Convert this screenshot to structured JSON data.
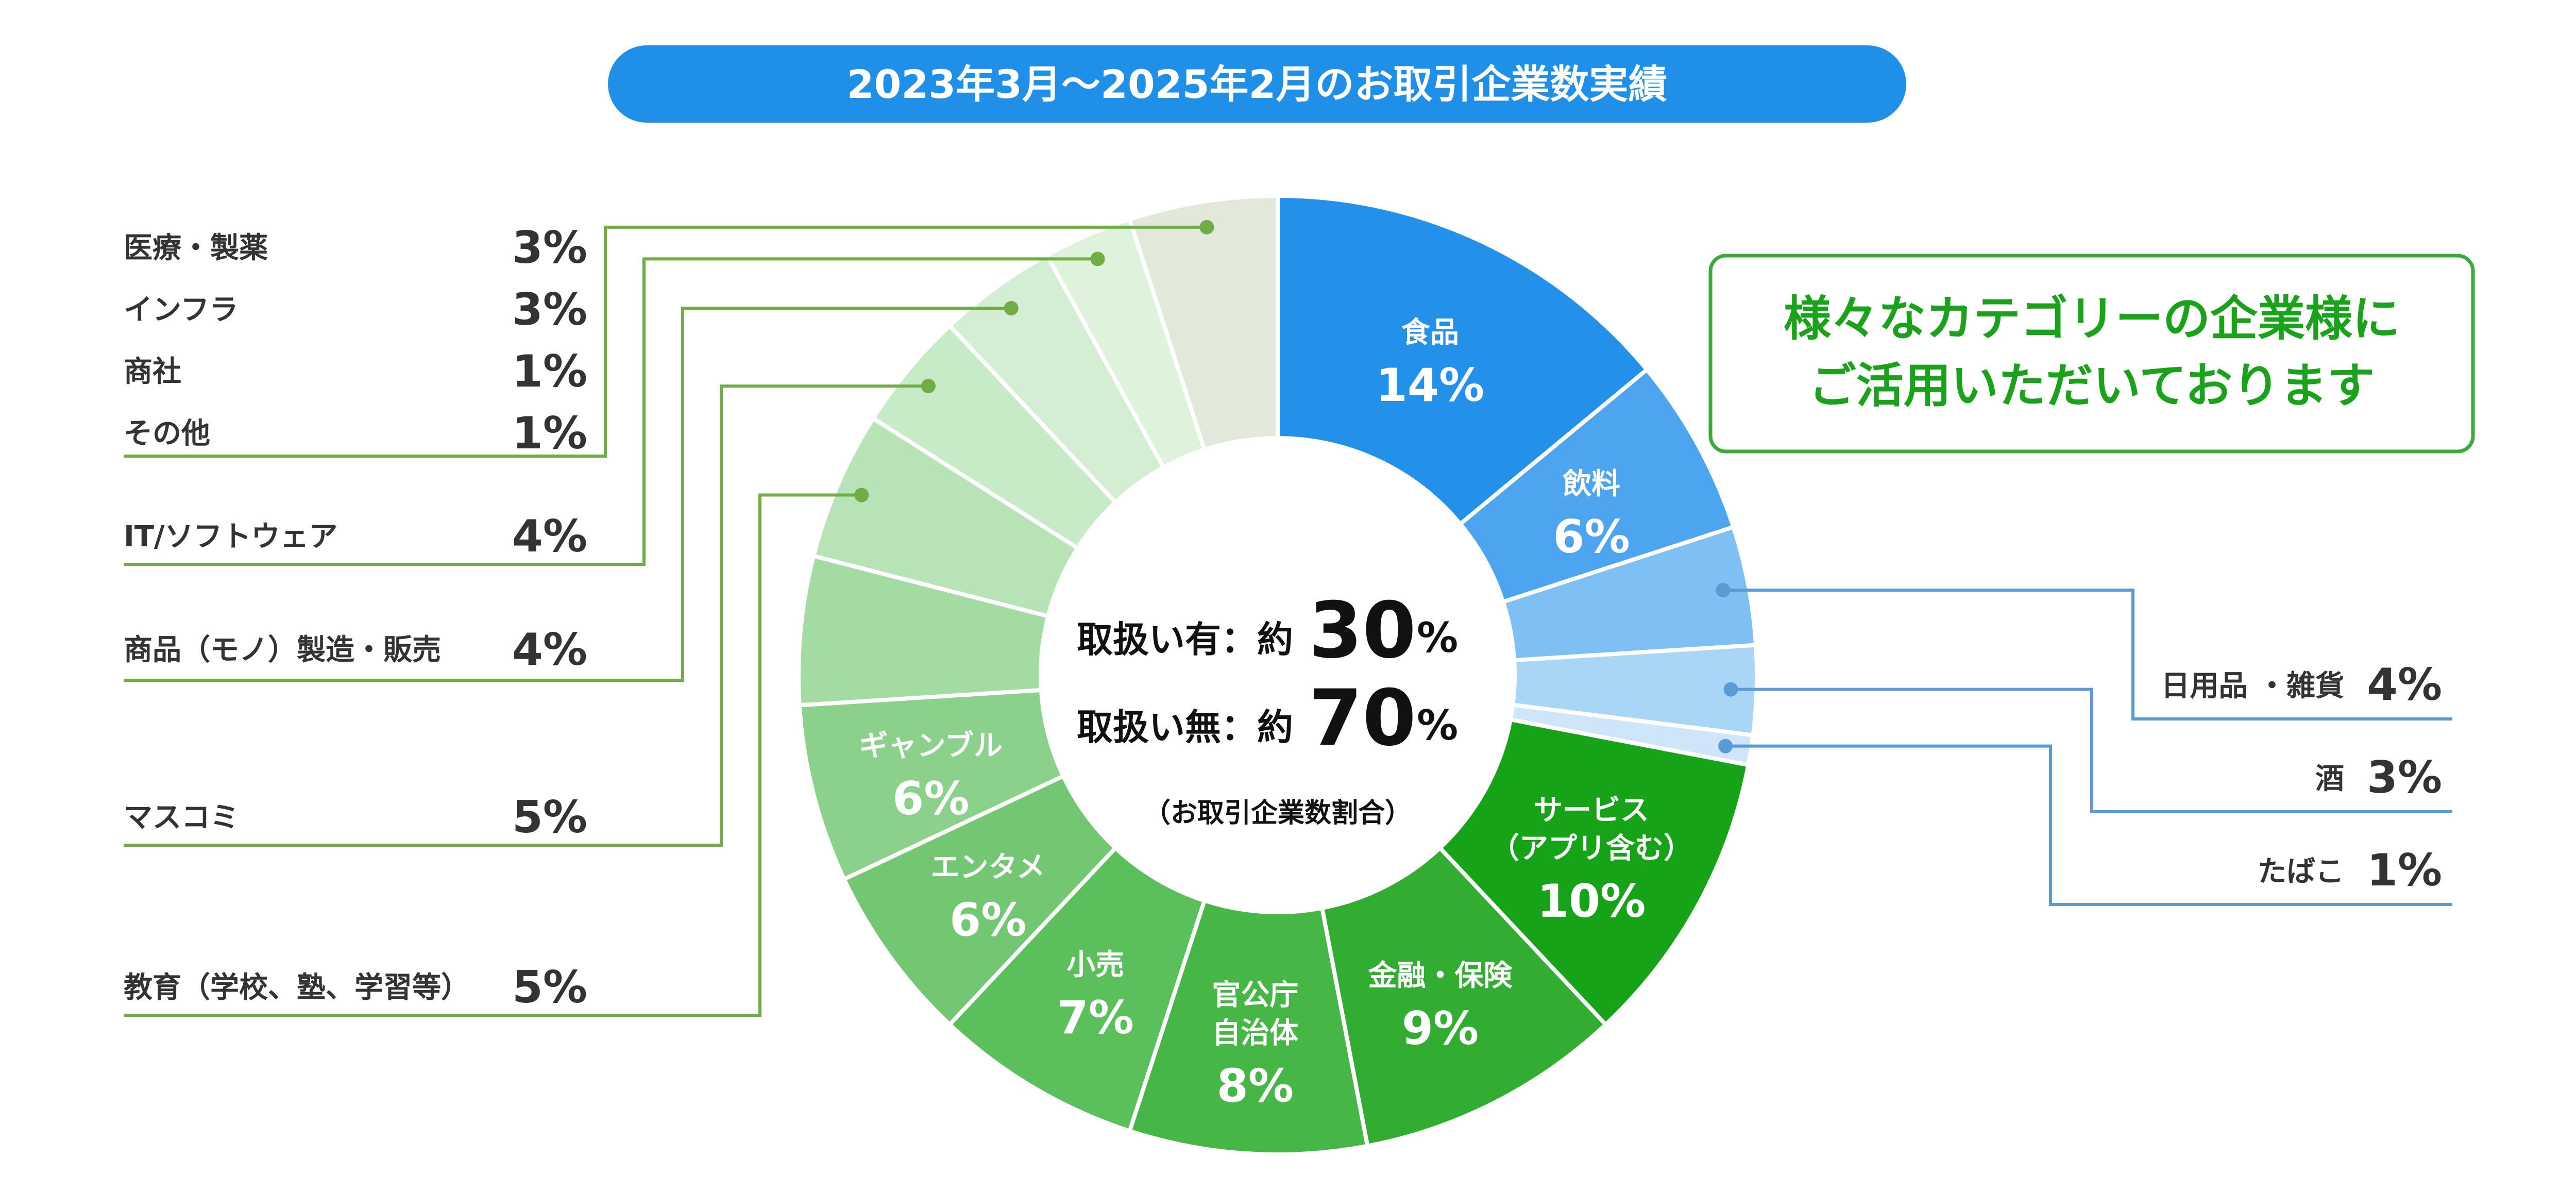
{
  "title": "2023年3月～2025年2月のお取引企業数実績",
  "callout": {
    "line1": "様々なカテゴリーの企業様に",
    "line2": "ご活用いただいております"
  },
  "center": {
    "row1_label": "取扱い有：約",
    "row1_value": "30",
    "row2_label": "取扱い無：約",
    "row2_value": "70",
    "unit": "%",
    "note": "（お取引企業数割合）"
  },
  "colors": {
    "title_pill": "#1f8fe8",
    "callout_text": "#1aa31a",
    "callout_border": "#3aaa3a",
    "blue_leader": "#5b9bd5",
    "green_leader": "#70ad47"
  },
  "chart_data": {
    "type": "pie",
    "variant": "donut",
    "title": "2023年3月～2025年2月のお取引企業数実績",
    "unit": "%",
    "slices": [
      {
        "label": "食品",
        "value": 14,
        "color": "#2390e9",
        "inside": [
          "食品"
        ]
      },
      {
        "label": "飲料",
        "value": 6,
        "color": "#4da5ef",
        "inside": [
          "飲料"
        ]
      },
      {
        "label": "日用品・雑貨",
        "value": 4,
        "color": "#7ec0f3"
      },
      {
        "label": "酒",
        "value": 3,
        "color": "#a9d5f7"
      },
      {
        "label": "たばこ",
        "value": 1,
        "color": "#cfe6fa"
      },
      {
        "label": "サービス（アプリ含む）",
        "value": 10,
        "color": "#17a317",
        "inside": [
          "サービス",
          "（アプリ含む）"
        ]
      },
      {
        "label": "金融・保険",
        "value": 9,
        "color": "#32ad32",
        "inside": [
          "金融・保険"
        ]
      },
      {
        "label": "官公庁自治体",
        "value": 8,
        "color": "#46b746",
        "inside": [
          "官公庁",
          "自治体"
        ]
      },
      {
        "label": "小売",
        "value": 7,
        "color": "#5bbf5b",
        "inside": [
          "小売"
        ]
      },
      {
        "label": "エンタメ",
        "value": 6,
        "color": "#73c773",
        "inside": [
          "エンタメ"
        ]
      },
      {
        "label": "ギャンブル",
        "value": 6,
        "color": "#8bd08b",
        "inside": [
          "ギャンブル"
        ]
      },
      {
        "label": "教育（学校、塾、学習等）",
        "value": 5,
        "color": "#a3dba3"
      },
      {
        "label": "マスコミ",
        "value": 5,
        "color": "#b7e3b7"
      },
      {
        "label": "商品（モノ）製造・販売",
        "value": 4,
        "color": "#c7eac7"
      },
      {
        "label": "IT/ソフトウェア",
        "value": 4,
        "color": "#d3eed3"
      },
      {
        "label": "インフラ",
        "value": 3,
        "color": "#dff2dc"
      },
      {
        "label": "医療・製薬/商社/その他",
        "value": 5,
        "color": "#e2e9da"
      }
    ],
    "left_legend": [
      {
        "label": "医療・製薬",
        "value": 3
      },
      {
        "label": "インフラ",
        "value": 3
      },
      {
        "label": "商社",
        "value": 1
      },
      {
        "label": "その他",
        "value": 1
      },
      {
        "label": "IT/ソフトウェア",
        "value": 4
      },
      {
        "label": "商品（モノ）製造・販売",
        "value": 4
      },
      {
        "label": "マスコミ",
        "value": 5
      },
      {
        "label": "教育（学校、塾、学習等）",
        "value": 5
      }
    ],
    "right_legend": [
      {
        "label": "日用品 ・雑貨",
        "value": 4
      },
      {
        "label": "酒",
        "value": 3
      },
      {
        "label": "たばこ",
        "value": 1
      }
    ]
  }
}
